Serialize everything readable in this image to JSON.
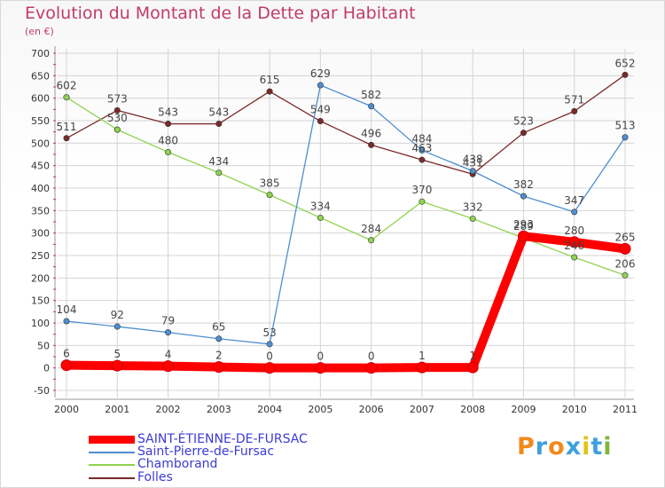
{
  "title": "Evolution du Montant de la Dette par Habitant",
  "unit": "(en €)",
  "brand": "Proxiti",
  "brand_colors": [
    "#f08a1c",
    "#3ea0dd",
    "#f08a1c",
    "#3ea0dd",
    "#e2c21c",
    "#3ea0dd",
    "#7fb635"
  ],
  "chart_data": {
    "type": "line",
    "title": "Evolution du Montant de la Dette par Habitant",
    "ylabel": "(en €)",
    "xlabel": "",
    "x": [
      "2000",
      "2001",
      "2002",
      "2003",
      "2004",
      "2005",
      "2006",
      "2007",
      "2008",
      "2009",
      "2010",
      "2011"
    ],
    "ylim": [
      -50,
      700
    ],
    "yticks": [
      -50,
      0,
      50,
      100,
      150,
      200,
      250,
      300,
      350,
      400,
      450,
      500,
      550,
      600,
      650,
      700
    ],
    "grid": true,
    "legend_position": "bottom-left",
    "series": [
      {
        "name": "SAINT-ÉTIENNE-DE-FURSAC",
        "color": "#ff0000",
        "values": [
          6,
          5,
          4,
          2,
          0,
          0,
          0,
          1,
          1,
          293,
          280,
          265
        ]
      },
      {
        "name": "Saint-Pierre-de-Fursac",
        "color": "#4f8fcf",
        "values": [
          104,
          92,
          79,
          65,
          53,
          629,
          582,
          484,
          438,
          382,
          347,
          513
        ]
      },
      {
        "name": "Chamborand",
        "color": "#8fd44f",
        "values": [
          602,
          530,
          480,
          434,
          385,
          334,
          284,
          370,
          332,
          289,
          246,
          206
        ]
      },
      {
        "name": "Folles",
        "color": "#7a2a2a",
        "values": [
          511,
          573,
          543,
          543,
          615,
          549,
          496,
          463,
          431,
          523,
          571,
          652
        ]
      }
    ]
  }
}
